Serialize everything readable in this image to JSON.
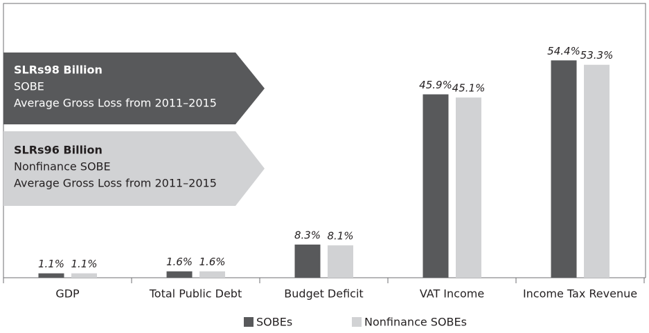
{
  "chart_data": {
    "type": "bar",
    "categories": [
      "GDP",
      "Total Public Debt",
      "Budget Deficit",
      "VAT Income",
      "Income Tax Revenue"
    ],
    "series": [
      {
        "name": "SOBEs",
        "color": "#58595b",
        "values": [
          1.1,
          1.6,
          8.3,
          45.9,
          54.4
        ],
        "value_labels": [
          "1.1%",
          "1.6%",
          "8.3%",
          "45.9%",
          "54.4%"
        ]
      },
      {
        "name": "Nonfinance SOBEs",
        "color": "#d1d2d4",
        "values": [
          1.1,
          1.6,
          8.1,
          45.1,
          53.3
        ],
        "value_labels": [
          "1.1%",
          "1.6%",
          "8.1%",
          "45.1%",
          "53.3%"
        ]
      }
    ],
    "ylim": [
      0,
      60
    ],
    "annotations": [
      {
        "color": "#58595b",
        "lines": [
          "SLRs98 Billion",
          "SOBE",
          "Average Gross Loss from 2011–2015"
        ]
      },
      {
        "color": "#d1d2d4",
        "lines": [
          "SLRs96 Billion",
          "Nonfinance SOBE",
          "Average Gross Loss from 2011–2015"
        ]
      }
    ],
    "legend": "bottom"
  }
}
